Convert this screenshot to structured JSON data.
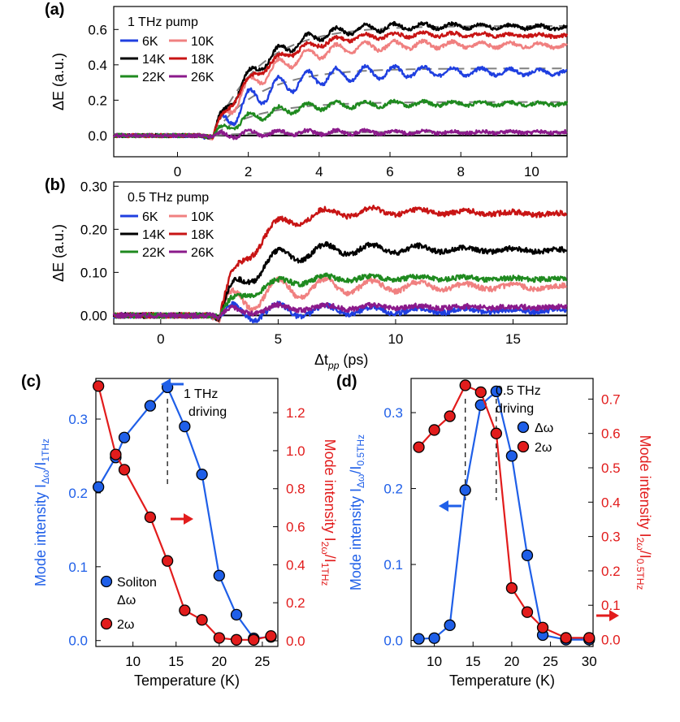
{
  "colors": {
    "6K": "#1f3fe0",
    "10K": "#f08080",
    "14K": "#000000",
    "18K": "#c81414",
    "22K": "#1f8a1f",
    "26K": "#8b1a8b",
    "blue": "#1f5fe8",
    "red": "#e21c1c",
    "gray": "#808080"
  },
  "chart_data": [
    {
      "id": "a",
      "type": "line",
      "panel_label": "(a)",
      "legend_title": "1 THz pump",
      "ylabel": "ΔE (a.u.)",
      "xlim": [
        -1.8,
        11
      ],
      "ylim": [
        -0.12,
        0.73
      ],
      "xticks": [
        "0",
        "2",
        "4",
        "6",
        "8",
        "10"
      ],
      "xtick_values": [
        0,
        2,
        4,
        6,
        8,
        10
      ],
      "yticks": [
        "0.0",
        "0.2",
        "0.4",
        "0.6"
      ],
      "ytick_values": [
        0,
        0.2,
        0.4,
        0.6
      ],
      "onset": 1.0,
      "osc_period": 0.82,
      "decay": 0.006,
      "noise": 0.01,
      "series": [
        {
          "name": "6K",
          "color_key": "6K",
          "plateau": 0.38,
          "osc": 0.075
        },
        {
          "name": "10K",
          "color_key": "10K",
          "plateau": 0.54,
          "osc": 0.055
        },
        {
          "name": "14K",
          "color_key": "14K",
          "plateau": 0.65,
          "osc": 0.045
        },
        {
          "name": "18K",
          "color_key": "18K",
          "plateau": 0.6,
          "osc": 0.03
        },
        {
          "name": "22K",
          "color_key": "22K",
          "plateau": 0.19,
          "osc": 0.035
        },
        {
          "name": "26K",
          "color_key": "26K",
          "plateau": 0.02,
          "osc": 0.02
        }
      ],
      "fits": [
        0.62,
        0.38,
        0.19,
        0.02
      ],
      "legend": [
        [
          "6K",
          "10K"
        ],
        [
          "14K",
          "18K"
        ],
        [
          "22K",
          "26K"
        ]
      ]
    },
    {
      "id": "b",
      "type": "line",
      "panel_label": "(b)",
      "legend_title": "0.5 THz pump",
      "ylabel": "ΔE (a.u.)",
      "xlabel_main": "Δt",
      "xlabel_sub": "pp",
      "xlabel_unit": " (ps)",
      "xlim": [
        -2,
        17.3
      ],
      "ylim": [
        -0.02,
        0.31
      ],
      "xticks": [
        "0",
        "5",
        "10",
        "15"
      ],
      "xtick_values": [
        0,
        5,
        10,
        15
      ],
      "yticks": [
        "0.00",
        "0.10",
        "0.20",
        "0.30"
      ],
      "ytick_values": [
        0,
        0.1,
        0.2,
        0.3
      ],
      "onset": 2.5,
      "osc_period": 2.0,
      "decay": 0.004,
      "noise": 0.006,
      "series": [
        {
          "name": "6K",
          "color_key": "6K",
          "plateau": 0.012,
          "osc": 0.025
        },
        {
          "name": "10K",
          "color_key": "10K",
          "plateau": 0.07,
          "osc": 0.04
        },
        {
          "name": "14K",
          "color_key": "14K",
          "plateau": 0.16,
          "osc": 0.03
        },
        {
          "name": "18K",
          "color_key": "18K",
          "plateau": 0.25,
          "osc": 0.025
        },
        {
          "name": "22K",
          "color_key": "22K",
          "plateau": 0.09,
          "osc": 0.015
        },
        {
          "name": "26K",
          "color_key": "26K",
          "plateau": 0.02,
          "osc": 0.012
        }
      ],
      "legend": [
        [
          "6K",
          "10K"
        ],
        [
          "14K",
          "18K"
        ],
        [
          "22K",
          "26K"
        ]
      ]
    },
    {
      "id": "c",
      "type": "scatter",
      "panel_label": "(c)",
      "annotation": [
        "1 THz",
        "driving"
      ],
      "xlabel": "Temperature (K)",
      "ylabel_left": "Mode intensity I",
      "ylabel_left_sub": "Δω",
      "ylabel_left_sub2": "/I",
      "ylabel_left_sub3": "1THz",
      "ylabel_right": "Mode intensity I",
      "ylabel_right_sub": "2ω",
      "ylabel_right_sub2": "/I",
      "ylabel_right_sub3": "1THz",
      "xlim": [
        5.7,
        26.8
      ],
      "ylim_left": [
        -0.008,
        0.355
      ],
      "ylim_right": [
        -0.03,
        1.38
      ],
      "xticks": [
        "10",
        "15",
        "20",
        "25"
      ],
      "xtick_values": [
        10,
        15,
        20,
        25
      ],
      "yticks_left": [
        "0.0",
        "0.1",
        "0.2",
        "0.3"
      ],
      "ytick_left_values": [
        0,
        0.1,
        0.2,
        0.3
      ],
      "yticks_right": [
        "0.0",
        "0.2",
        "0.4",
        "0.6",
        "0.8",
        "1.0",
        "1.2"
      ],
      "ytick_right_values": [
        0,
        0.2,
        0.4,
        0.6,
        0.8,
        1,
        1.2
      ],
      "peak_T": 14,
      "series": [
        {
          "name": "Soliton Δω",
          "axis": "left",
          "color_key": "blue",
          "x": [
            6,
            8,
            9,
            12,
            14,
            16,
            18,
            20,
            22,
            24,
            26
          ],
          "y": [
            0.208,
            0.248,
            0.275,
            0.318,
            0.343,
            0.29,
            0.225,
            0.088,
            0.035,
            0.003,
            0.005
          ]
        },
        {
          "name": "2ω",
          "axis": "right",
          "color_key": "red",
          "x": [
            6,
            8,
            9,
            12,
            14,
            16,
            18,
            20,
            22,
            24,
            26
          ],
          "y": [
            1.34,
            0.98,
            0.9,
            0.65,
            0.42,
            0.16,
            0.11,
            0.015,
            0.005,
            0.005,
            0.025
          ]
        }
      ],
      "legend": [
        "Soliton",
        "Δω",
        "2ω"
      ]
    },
    {
      "id": "d",
      "type": "scatter",
      "panel_label": "(d)",
      "annotation": [
        "0.5 THz",
        "driving"
      ],
      "xlabel": "Temperature (K)",
      "ylabel_left": "Mode intensity I",
      "ylabel_left_sub": "Δω",
      "ylabel_left_sub2": "/I",
      "ylabel_left_sub3": "0.5THz",
      "ylabel_right": "Mode intensity I",
      "ylabel_right_sub": "2ω",
      "ylabel_right_sub2": "/I",
      "ylabel_right_sub3": "0.5THz",
      "xlim": [
        7,
        30.5
      ],
      "ylim_left": [
        -0.008,
        0.345
      ],
      "ylim_right": [
        -0.02,
        0.76
      ],
      "xticks": [
        "10",
        "15",
        "20",
        "25",
        "30"
      ],
      "xtick_values": [
        10,
        15,
        20,
        25,
        30
      ],
      "yticks_left": [
        "0.0",
        "0.1",
        "0.2",
        "0.3"
      ],
      "ytick_left_values": [
        0,
        0.1,
        0.2,
        0.3
      ],
      "yticks_right": [
        "0.0",
        "0.1",
        "0.2",
        "0.3",
        "0.4",
        "0.5",
        "0.6",
        "0.7"
      ],
      "ytick_right_values": [
        0,
        0.1,
        0.2,
        0.3,
        0.4,
        0.5,
        0.6,
        0.7
      ],
      "peak_T": [
        14,
        18
      ],
      "series": [
        {
          "name": "Δω",
          "axis": "left",
          "color_key": "blue",
          "x": [
            8,
            10,
            12,
            14,
            16,
            18,
            20,
            22,
            24,
            27,
            30
          ],
          "y": [
            0.002,
            0.003,
            0.02,
            0.198,
            0.31,
            0.328,
            0.243,
            0.112,
            0.007,
            0.001,
            0.001
          ]
        },
        {
          "name": "2ω",
          "axis": "right",
          "color_key": "red",
          "x": [
            8,
            10,
            12,
            14,
            16,
            18,
            20,
            22,
            24,
            27,
            30
          ],
          "y": [
            0.56,
            0.61,
            0.65,
            0.74,
            0.72,
            0.6,
            0.15,
            0.08,
            0.035,
            0.005,
            0.005
          ]
        }
      ],
      "legend": [
        "Δω",
        "2ω"
      ]
    }
  ]
}
